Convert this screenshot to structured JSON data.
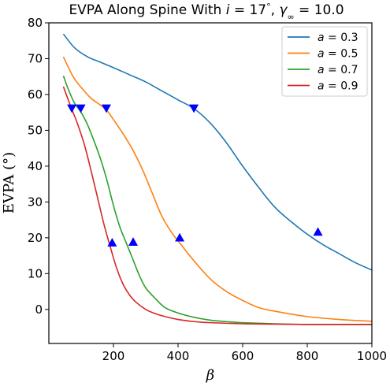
{
  "chart_data": {
    "type": "line",
    "title": "EVPA Along Spine With i = 17°, γ∞ = 10.0",
    "title_parts": {
      "prefix": "EVPA Along Spine With ",
      "i_var": "i",
      "i_eq": " = 17",
      "deg": "°",
      "sep": ", ",
      "gamma": "γ",
      "inf": "∞",
      "gamma_eq": " = 10.0"
    },
    "xlabel": "β",
    "ylabel": "EVPA (°)",
    "xlim": [
      0,
      1000
    ],
    "ylim": [
      -9.5,
      80
    ],
    "xticks": [
      200,
      400,
      600,
      800,
      1000
    ],
    "yticks": [
      0,
      10,
      20,
      30,
      40,
      50,
      60,
      70,
      80
    ],
    "legend_position": "top-right",
    "legend_var": "a",
    "series": [
      {
        "name": "a = 0.3",
        "color": "#1f77b4",
        "x": [
          45,
          80,
          120,
          160,
          200,
          250,
          300,
          350,
          400,
          450,
          500,
          550,
          600,
          650,
          700,
          750,
          800,
          850,
          900,
          950,
          1000
        ],
        "y": [
          76.9,
          73.0,
          70.5,
          69.0,
          67.5,
          65.5,
          63.5,
          61.0,
          58.5,
          56.0,
          52.0,
          46.5,
          40.0,
          34.0,
          28.5,
          24.5,
          21.0,
          18.0,
          15.5,
          13.0,
          11.0
        ]
      },
      {
        "name": "a = 0.5",
        "color": "#ff7f0e",
        "x": [
          45,
          75,
          100,
          130,
          160,
          180,
          200,
          230,
          260,
          290,
          320,
          350,
          380,
          410,
          450,
          500,
          550,
          600,
          650,
          700,
          800,
          900,
          1000
        ],
        "y": [
          70.5,
          65.0,
          62.0,
          59.0,
          57.0,
          55.5,
          53.0,
          49.0,
          44.5,
          39.0,
          32.5,
          26.0,
          21.5,
          18.0,
          13.5,
          8.5,
          5.0,
          2.5,
          0.5,
          -0.5,
          -2.0,
          -2.8,
          -3.3
        ]
      },
      {
        "name": "a = 0.7",
        "color": "#2ca02c",
        "x": [
          45,
          60,
          80,
          100,
          120,
          140,
          160,
          180,
          200,
          220,
          240,
          260,
          280,
          300,
          330,
          360,
          400,
          450,
          500,
          550,
          600,
          700,
          800,
          900,
          1000
        ],
        "y": [
          65.2,
          61.5,
          57.5,
          55.0,
          51.5,
          47.0,
          42.0,
          36.0,
          29.0,
          23.0,
          18.5,
          14.0,
          9.5,
          6.0,
          3.0,
          0.5,
          -1.0,
          -2.2,
          -3.0,
          -3.4,
          -3.7,
          -4.0,
          -4.2,
          -4.2,
          -4.2
        ]
      },
      {
        "name": "a = 0.9",
        "color": "#d62728",
        "x": [
          45,
          60,
          75,
          90,
          110,
          130,
          150,
          170,
          190,
          210,
          230,
          250,
          270,
          300,
          330,
          360,
          400,
          450,
          500,
          600,
          700,
          800,
          900,
          1000
        ],
        "y": [
          62.2,
          58.5,
          55.0,
          51.5,
          46.0,
          39.0,
          31.5,
          24.0,
          17.5,
          11.5,
          7.0,
          4.0,
          2.0,
          0.0,
          -1.2,
          -2.0,
          -2.8,
          -3.4,
          -3.7,
          -4.0,
          -4.1,
          -4.2,
          -4.2,
          -4.2
        ]
      }
    ],
    "markers": [
      {
        "x": 449,
        "y": 56.1,
        "shape": "triangle-down",
        "color": "#0000ff"
      },
      {
        "x": 833,
        "y": 21.7,
        "shape": "triangle-up",
        "color": "#0000ff"
      },
      {
        "x": 178,
        "y": 56.1,
        "shape": "triangle-down",
        "color": "#0000ff"
      },
      {
        "x": 405,
        "y": 20.1,
        "shape": "triangle-up",
        "color": "#0000ff"
      },
      {
        "x": 99,
        "y": 56.1,
        "shape": "triangle-down",
        "color": "#0000ff"
      },
      {
        "x": 261,
        "y": 18.9,
        "shape": "triangle-up",
        "color": "#0000ff"
      },
      {
        "x": 71,
        "y": 56.1,
        "shape": "triangle-down",
        "color": "#0000ff"
      },
      {
        "x": 196,
        "y": 18.7,
        "shape": "triangle-up",
        "color": "#0000ff"
      }
    ]
  }
}
